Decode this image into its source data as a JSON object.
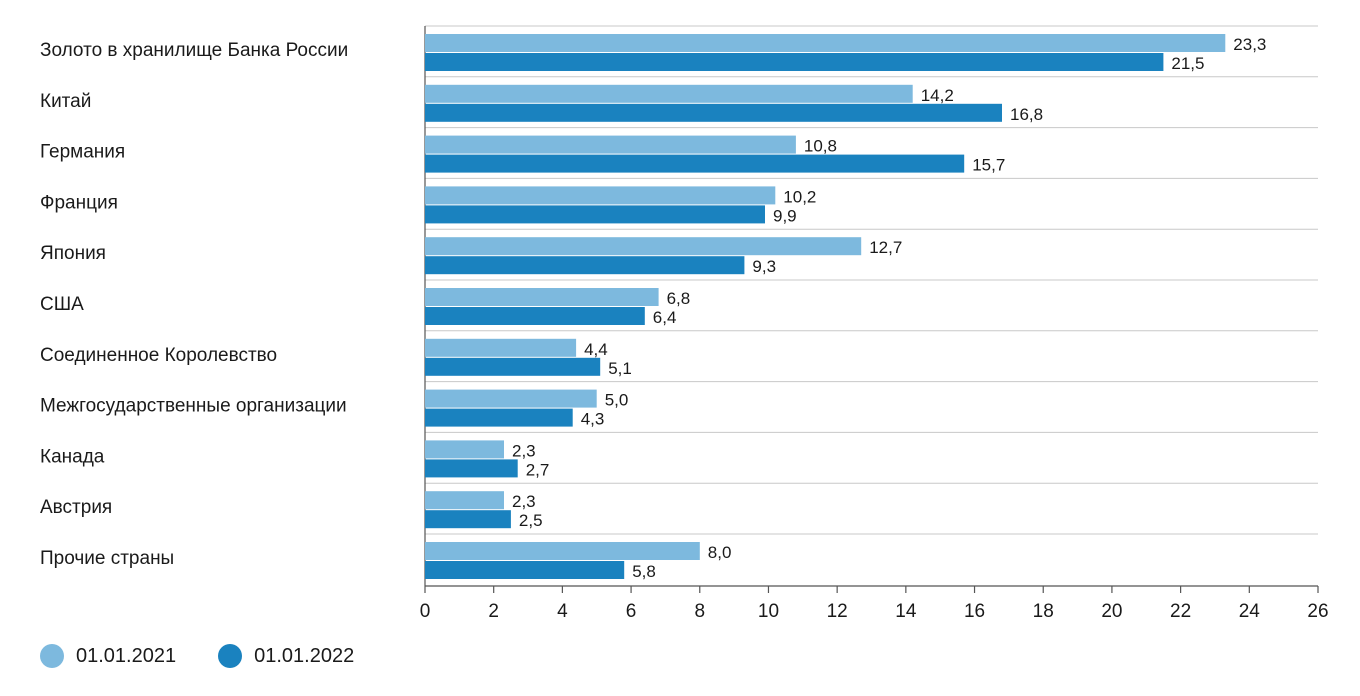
{
  "chart_data": {
    "type": "bar",
    "orientation": "horizontal",
    "categories": [
      "Золото в хранилище Банка России",
      "Китай",
      "Германия",
      "Франция",
      "Япония",
      "США",
      "Соединенное Королевство",
      "Межгосударственные организации",
      "Канада",
      "Австрия",
      "Прочие страны"
    ],
    "series": [
      {
        "name": "01.01.2021",
        "color": "#7db9de",
        "values": [
          23.3,
          14.2,
          10.8,
          10.2,
          12.7,
          6.8,
          4.4,
          5.0,
          2.3,
          2.3,
          8.0
        ],
        "labels": [
          "23,3",
          "14,2",
          "10,8",
          "10,2",
          "12,7",
          "6,8",
          "4,4",
          "5,0",
          "2,3",
          "2,3",
          "8,0"
        ]
      },
      {
        "name": "01.01.2022",
        "color": "#1a82bf",
        "values": [
          21.5,
          16.8,
          15.7,
          9.9,
          9.3,
          6.4,
          5.1,
          4.3,
          2.7,
          2.5,
          5.8
        ],
        "labels": [
          "21,5",
          "16,8",
          "15,7",
          "9,9",
          "9,3",
          "6,4",
          "5,1",
          "4,3",
          "2,7",
          "2,5",
          "5,8"
        ]
      }
    ],
    "xlim": [
      0,
      26
    ],
    "xticks": [
      0,
      2,
      4,
      6,
      8,
      10,
      12,
      14,
      16,
      18,
      20,
      22,
      24,
      26
    ],
    "grid": "horizontal separators between categories",
    "legend_position": "bottom-left",
    "title": "",
    "xlabel": "",
    "ylabel": ""
  }
}
